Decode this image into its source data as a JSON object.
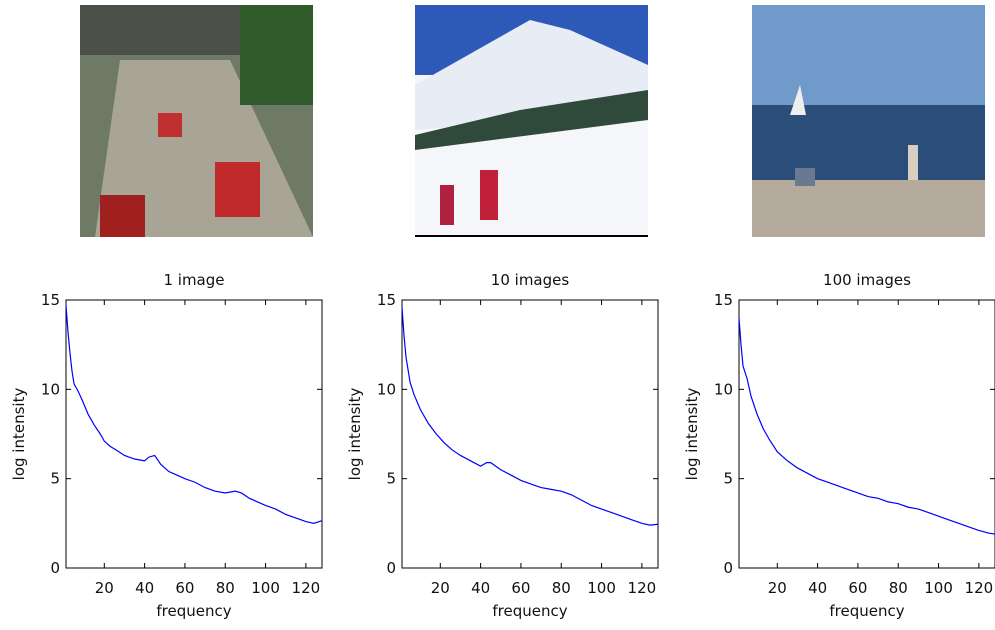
{
  "chart_data": [
    {
      "type": "line",
      "title": "1 image",
      "xlabel": "frequency",
      "ylabel": "log intensity",
      "color": "#0000ff",
      "xlim": [
        1,
        128
      ],
      "ylim": [
        0,
        15
      ],
      "xticks": [
        20,
        40,
        60,
        80,
        100,
        120
      ],
      "yticks": [
        0,
        5,
        10,
        15
      ],
      "x": [
        1,
        2,
        3,
        4,
        5,
        7,
        9,
        12,
        15,
        18,
        20,
        23,
        26,
        30,
        35,
        40,
        42,
        45,
        48,
        52,
        56,
        60,
        65,
        70,
        75,
        80,
        85,
        88,
        92,
        96,
        100,
        105,
        110,
        115,
        120,
        124,
        128
      ],
      "values": [
        14.7,
        13.2,
        12,
        11,
        10.3,
        9.9,
        9.4,
        8.6,
        8,
        7.5,
        7.1,
        6.8,
        6.6,
        6.3,
        6.1,
        6.0,
        6.2,
        6.3,
        5.8,
        5.4,
        5.2,
        5.0,
        4.8,
        4.5,
        4.3,
        4.2,
        4.3,
        4.2,
        3.9,
        3.7,
        3.5,
        3.3,
        3.0,
        2.8,
        2.6,
        2.5,
        2.65
      ]
    },
    {
      "type": "line",
      "title": "10 images",
      "xlabel": "frequency",
      "ylabel": "log intensity",
      "color": "#0000ff",
      "xlim": [
        1,
        128
      ],
      "ylim": [
        0,
        15
      ],
      "xticks": [
        20,
        40,
        60,
        80,
        100,
        120
      ],
      "yticks": [
        0,
        5,
        10,
        15
      ],
      "x": [
        1,
        2,
        3,
        5,
        7,
        10,
        14,
        18,
        22,
        26,
        30,
        35,
        40,
        43,
        45,
        50,
        55,
        60,
        65,
        70,
        75,
        80,
        85,
        90,
        95,
        100,
        105,
        110,
        115,
        120,
        124,
        128
      ],
      "values": [
        14.6,
        13,
        11.8,
        10.4,
        9.7,
        8.9,
        8.1,
        7.5,
        7.0,
        6.6,
        6.3,
        6.0,
        5.7,
        5.9,
        5.9,
        5.5,
        5.2,
        4.9,
        4.7,
        4.5,
        4.4,
        4.3,
        4.1,
        3.8,
        3.5,
        3.3,
        3.1,
        2.9,
        2.7,
        2.5,
        2.4,
        2.45
      ]
    },
    {
      "type": "line",
      "title": "100 images",
      "xlabel": "frequency",
      "ylabel": "log intensity",
      "color": "#0000ff",
      "xlim": [
        1,
        128
      ],
      "ylim": [
        0,
        15
      ],
      "xticks": [
        20,
        40,
        60,
        80,
        100,
        120
      ],
      "yticks": [
        0,
        5,
        10,
        15
      ],
      "x": [
        1,
        2,
        3,
        5,
        7,
        10,
        13,
        16,
        20,
        25,
        30,
        35,
        40,
        45,
        50,
        55,
        60,
        65,
        70,
        75,
        80,
        85,
        90,
        95,
        100,
        105,
        110,
        115,
        120,
        125,
        128
      ],
      "values": [
        14,
        12.5,
        11.3,
        10.6,
        9.6,
        8.6,
        7.8,
        7.2,
        6.5,
        6.0,
        5.6,
        5.3,
        5.0,
        4.8,
        4.6,
        4.4,
        4.2,
        4.0,
        3.9,
        3.7,
        3.6,
        3.4,
        3.3,
        3.1,
        2.9,
        2.7,
        2.5,
        2.3,
        2.1,
        1.95,
        1.9
      ]
    }
  ]
}
